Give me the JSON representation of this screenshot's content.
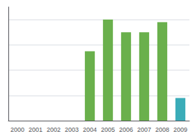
{
  "chart_data": {
    "type": "bar",
    "categories": [
      "2000",
      "2001",
      "2002",
      "2003",
      "2004",
      "2005",
      "2006",
      "2007",
      "2008",
      "2009"
    ],
    "values": [
      0,
      0,
      0,
      0,
      55,
      80,
      70,
      70,
      78,
      18
    ],
    "colors": [
      "#6ab04c",
      "#6ab04c",
      "#6ab04c",
      "#6ab04c",
      "#6ab04c",
      "#6ab04c",
      "#6ab04c",
      "#6ab04c",
      "#6ab04c",
      "#3aacb8"
    ],
    "ylim": [
      0,
      90
    ],
    "yticks": [
      0,
      20,
      40,
      60,
      80
    ],
    "grid": true,
    "tick_labels": "x"
  }
}
